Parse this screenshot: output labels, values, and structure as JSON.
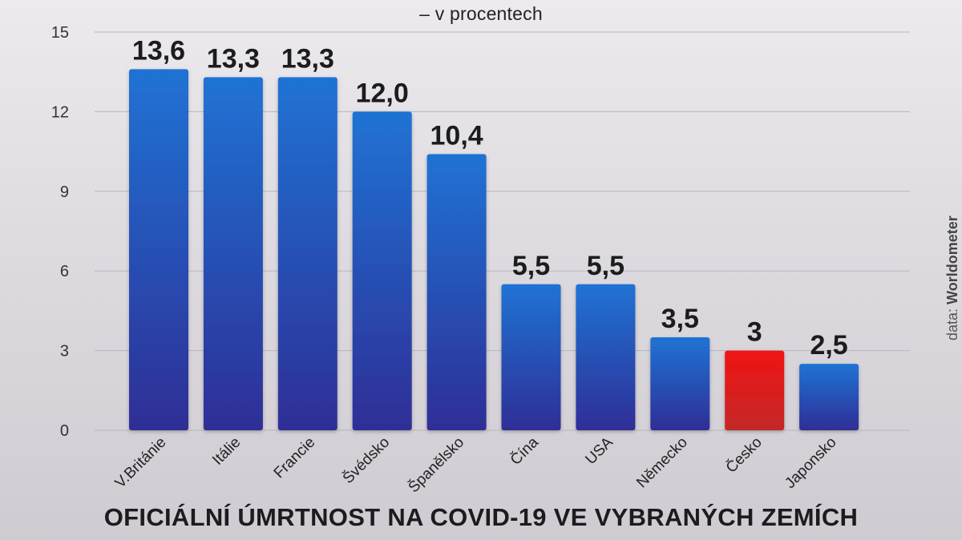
{
  "chart_data": {
    "type": "bar",
    "title": "OFICIÁLNÍ ÚMRTNOST NA COVID-19 VE VYBRANÝCH ZEMÍCH",
    "subtitle": "– v procentech",
    "source_prefix": "data: ",
    "source_name": "Worldometer",
    "categories": [
      "V.Británie",
      "Itálie",
      "Francie",
      "Švédsko",
      "Španělsko",
      "Čína",
      "USA",
      "Německo",
      "Česko",
      "Japonsko"
    ],
    "values": [
      13.6,
      13.3,
      13.3,
      12.0,
      10.4,
      5.5,
      5.5,
      3.5,
      3,
      2.5
    ],
    "value_labels": [
      "13,6",
      "13,3",
      "13,3",
      "12,0",
      "10,4",
      "5,5",
      "5,5",
      "3,5",
      "3",
      "2,5"
    ],
    "highlight_index": 8,
    "colors": {
      "bar_top": "#1f73d4",
      "bar_bottom": "#2f2e96",
      "highlight_top": "#f01414",
      "highlight_bottom": "#c42828"
    },
    "ylim": [
      0,
      15
    ],
    "yticks": [
      0,
      3,
      6,
      9,
      12,
      15
    ],
    "grid": true,
    "xlabel": "",
    "ylabel": ""
  }
}
